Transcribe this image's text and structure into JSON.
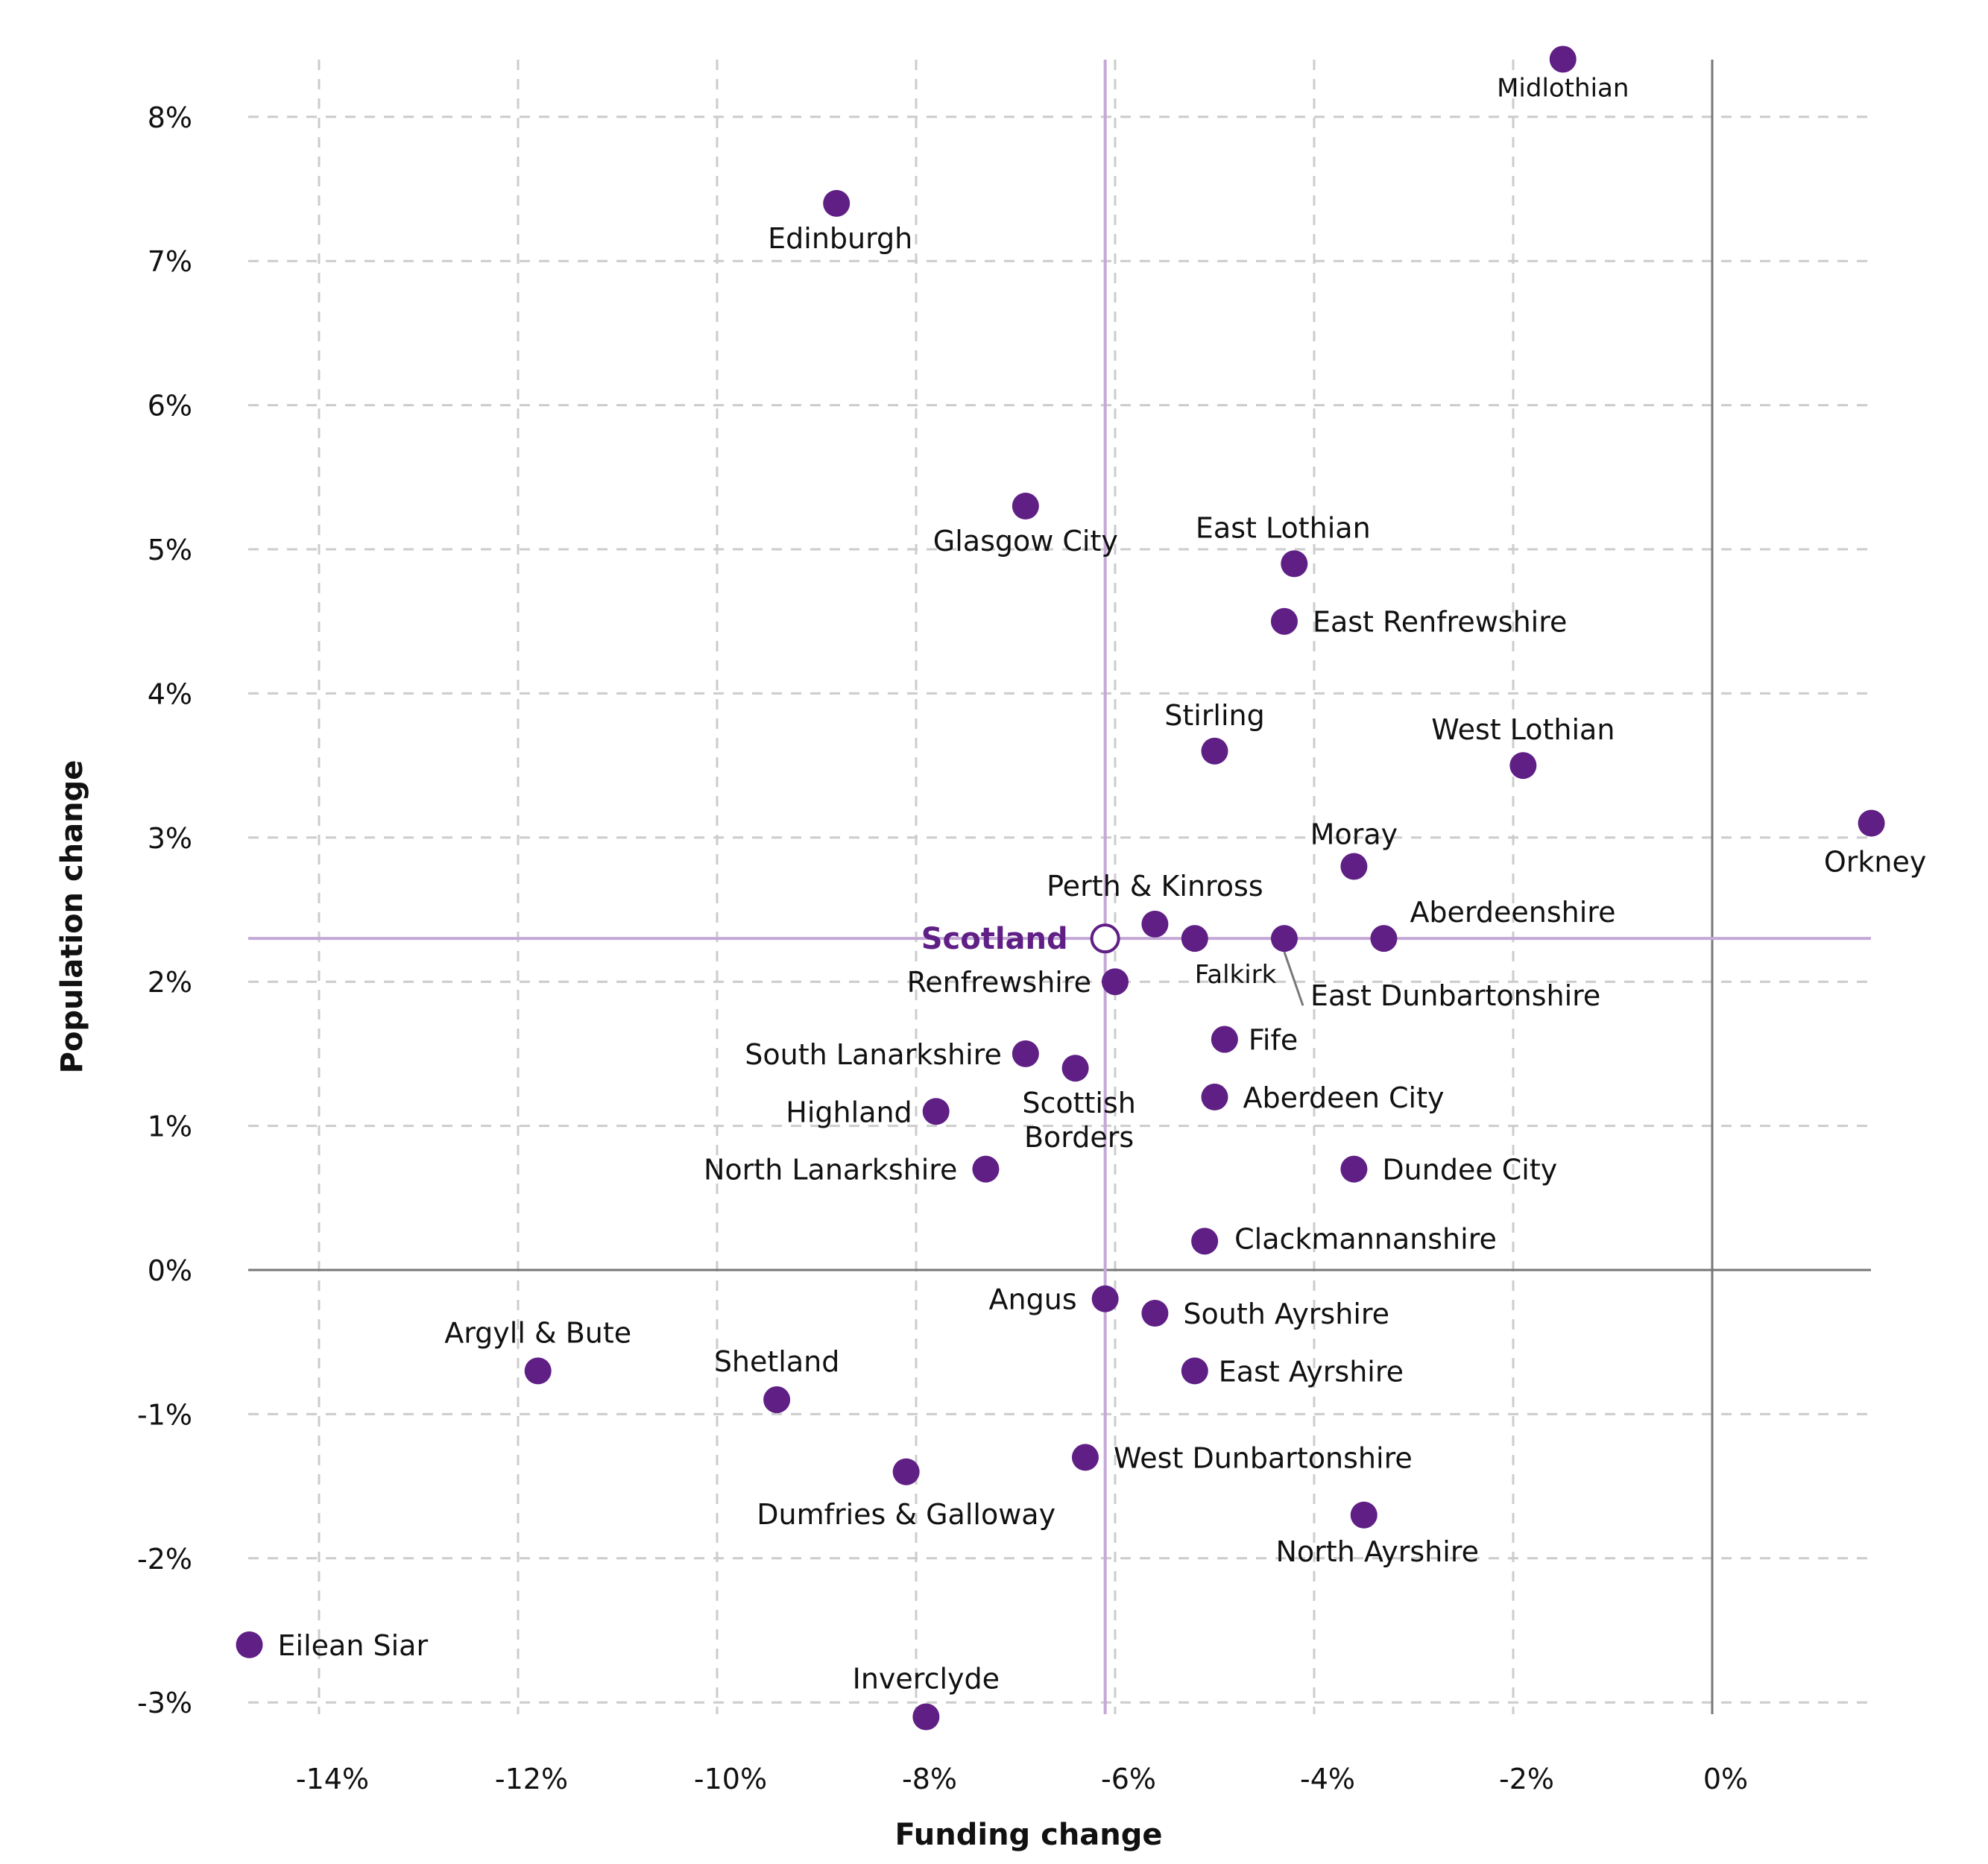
{
  "chart_data": {
    "type": "scatter",
    "title": "",
    "xlabel": "Funding change",
    "ylabel": "Population change",
    "xlim": [
      -14.7,
      1.6
    ],
    "ylim": [
      -3.1,
      8.4
    ],
    "grid": true,
    "x_ticks": [
      -14,
      -12,
      -10,
      -8,
      -6,
      -4,
      -2,
      0
    ],
    "x_tick_labels": [
      "-14%",
      "-12%",
      "-10%",
      "-8%",
      "-6%",
      "-4%",
      "-2%",
      "0%"
    ],
    "y_ticks": [
      8,
      7,
      6,
      5,
      4,
      3,
      2,
      1,
      0,
      -1,
      -2,
      -3
    ],
    "y_tick_labels": [
      "8%",
      "7%",
      "6%",
      "5%",
      "4%",
      "3%",
      "2%",
      "1%",
      "0%",
      "-1%",
      "-2%",
      "-3%"
    ],
    "colors": {
      "point": "#5f1f85",
      "reference_line": "#c4a8d6",
      "zero_line": "#777777",
      "grid": "#cccccc",
      "scotland_label": "#5f1f85"
    },
    "reference": {
      "name": "Scotland",
      "x": -6.1,
      "y": 2.3
    },
    "points": [
      {
        "name": "Midlothian",
        "x": -1.5,
        "y": 8.4
      },
      {
        "name": "Edinburgh",
        "x": -8.8,
        "y": 7.4
      },
      {
        "name": "Glasgow City",
        "x": -6.9,
        "y": 5.3
      },
      {
        "name": "East Lothian",
        "x": -4.2,
        "y": 4.9
      },
      {
        "name": "East Renfrewshire",
        "x": -4.3,
        "y": 4.5
      },
      {
        "name": "Stirling",
        "x": -5.0,
        "y": 3.6
      },
      {
        "name": "West Lothian",
        "x": -1.9,
        "y": 3.5
      },
      {
        "name": "Orkney",
        "x": 1.6,
        "y": 3.1
      },
      {
        "name": "Moray",
        "x": -3.6,
        "y": 2.8
      },
      {
        "name": "Perth & Kinross",
        "x": -5.6,
        "y": 2.4
      },
      {
        "name": "Falkirk",
        "x": -5.2,
        "y": 2.3
      },
      {
        "name": "East Dunbartonshire",
        "x": -4.3,
        "y": 2.3
      },
      {
        "name": "Aberdeenshire",
        "x": -3.3,
        "y": 2.3
      },
      {
        "name": "Renfrewshire",
        "x": -6.0,
        "y": 2.0
      },
      {
        "name": "South Lanarkshire",
        "x": -6.9,
        "y": 1.5
      },
      {
        "name": "Scottish Borders",
        "x": -6.4,
        "y": 1.4
      },
      {
        "name": "Fife",
        "x": -4.9,
        "y": 1.6
      },
      {
        "name": "Aberdeen City",
        "x": -5.0,
        "y": 1.2
      },
      {
        "name": "Highland",
        "x": -7.8,
        "y": 1.1
      },
      {
        "name": "North Lanarkshire",
        "x": -7.3,
        "y": 0.7
      },
      {
        "name": "Dundee City",
        "x": -3.6,
        "y": 0.7
      },
      {
        "name": "Clackmannanshire",
        "x": -5.1,
        "y": 0.2
      },
      {
        "name": "Angus",
        "x": -6.1,
        "y": -0.2
      },
      {
        "name": "South Ayrshire",
        "x": -5.6,
        "y": -0.3
      },
      {
        "name": "East Ayrshire",
        "x": -5.2,
        "y": -0.7
      },
      {
        "name": "Argyll & Bute",
        "x": -11.8,
        "y": -0.7
      },
      {
        "name": "Shetland",
        "x": -9.4,
        "y": -0.9
      },
      {
        "name": "West Dunbartonshire",
        "x": -6.3,
        "y": -1.3
      },
      {
        "name": "Dumfries & Galloway",
        "x": -8.1,
        "y": -1.4
      },
      {
        "name": "North Ayrshire",
        "x": -3.5,
        "y": -1.7
      },
      {
        "name": "Eilean Siar",
        "x": -14.7,
        "y": -2.6
      },
      {
        "name": "Inverclyde",
        "x": -7.9,
        "y": -3.1
      }
    ]
  }
}
